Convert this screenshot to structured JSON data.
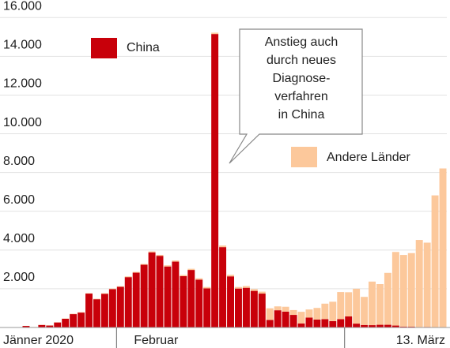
{
  "chart_data": {
    "type": "bar",
    "stacked": true,
    "categories": [
      "Jänner 2020",
      null,
      null,
      null,
      null,
      null,
      null,
      null,
      null,
      null,
      null,
      null,
      "Februar",
      null,
      null,
      null,
      null,
      null,
      null,
      null,
      null,
      null,
      null,
      null,
      null,
      null,
      null,
      null,
      null,
      null,
      null,
      null,
      null,
      null,
      null,
      null,
      null,
      null,
      null,
      null,
      null,
      null,
      null,
      null,
      null,
      null,
      null,
      null,
      null,
      null,
      null,
      null,
      null,
      "13. März"
    ],
    "series": [
      {
        "name": "China",
        "color": "#c8000a",
        "values": [
          80,
          20,
          130,
          100,
          260,
          450,
          690,
          770,
          1750,
          1460,
          1740,
          1980,
          2100,
          2600,
          2830,
          3240,
          3880,
          3700,
          3150,
          3400,
          2650,
          2970,
          2470,
          2020,
          15150,
          4150,
          2640,
          2010,
          2050,
          1890,
          1750,
          390,
          890,
          820,
          650,
          210,
          510,
          410,
          430,
          330,
          430,
          570,
          200,
          130,
          120,
          140,
          140,
          100,
          45,
          40,
          20,
          30,
          20,
          10
        ]
      },
      {
        "name": "Andere Länder",
        "color": "#fcc89b",
        "values": [
          5,
          5,
          10,
          10,
          10,
          15,
          20,
          20,
          20,
          25,
          30,
          30,
          30,
          40,
          40,
          40,
          50,
          50,
          60,
          60,
          60,
          60,
          70,
          70,
          70,
          80,
          80,
          80,
          90,
          90,
          100,
          600,
          200,
          250,
          250,
          600,
          420,
          600,
          800,
          1000,
          1400,
          1250,
          1800,
          1450,
          2250,
          2100,
          2680,
          3800,
          3700,
          3800,
          4500,
          4350,
          6800,
          8200
        ]
      }
    ],
    "ylim": [
      0,
      16500
    ],
    "yticks": [
      {
        "value": 2000,
        "label": "2.000"
      },
      {
        "value": 4000,
        "label": "4.000"
      },
      {
        "value": 6000,
        "label": "6.000"
      },
      {
        "value": 8000,
        "label": "8.000"
      },
      {
        "value": 10000,
        "label": "10.000"
      },
      {
        "value": 12000,
        "label": "12.000"
      },
      {
        "value": 14000,
        "label": "14.000"
      },
      {
        "value": 16000,
        "label": "16.000"
      }
    ],
    "grid": true,
    "annotation": [
      "Anstieg auch",
      "durch neues",
      "Diagnose-",
      "verfahren",
      "in China"
    ]
  }
}
